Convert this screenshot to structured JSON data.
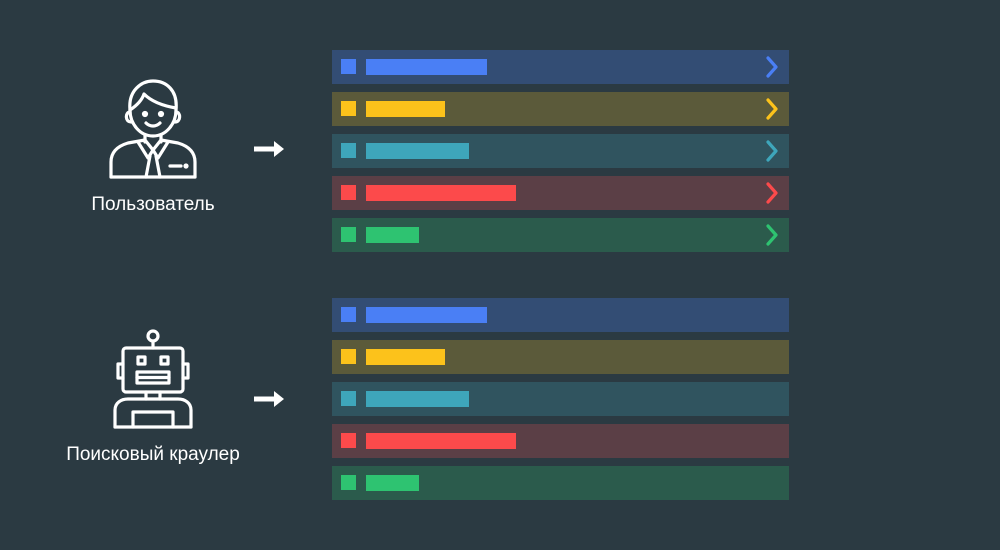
{
  "actors": {
    "user": {
      "label": "Пользователь",
      "icon": "user-icon"
    },
    "crawler": {
      "label": "Поисковый краулер",
      "icon": "robot-icon"
    }
  },
  "arrow_icon": "arrow-right-icon",
  "chevron_icon": "chevron-right-icon",
  "rows": [
    {
      "color": "#4a7ff5",
      "bg": "#334d74",
      "fill": 0.55
    },
    {
      "color": "#fcc21b",
      "bg": "#5b5a3a",
      "fill": 0.36
    },
    {
      "color": "#3ea6bb",
      "bg": "#30545f",
      "fill": 0.47
    },
    {
      "color": "#fc4a4b",
      "bg": "#5b3f46",
      "fill": 0.68
    },
    {
      "color": "#2ec371",
      "bg": "#2b5b4c",
      "fill": 0.24
    }
  ],
  "lists": {
    "user": {
      "show_chevrons": true
    },
    "crawler": {
      "show_chevrons": false
    }
  }
}
